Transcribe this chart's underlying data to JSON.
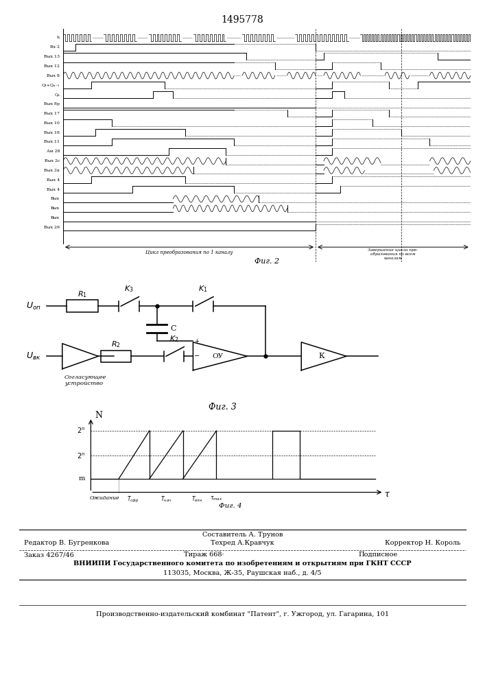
{
  "title": "1495778",
  "bg_color": "#ffffff",
  "fig2_label": "Фиг. 2",
  "fig3_label": "Фиг. 3",
  "fig4_label": "Фиг. 4",
  "cycle_label1": "Цикл преобразования по 1 каналу",
  "cycle_label2": "Завершение цикла пре-\nобразования по всем\nканалам"
}
